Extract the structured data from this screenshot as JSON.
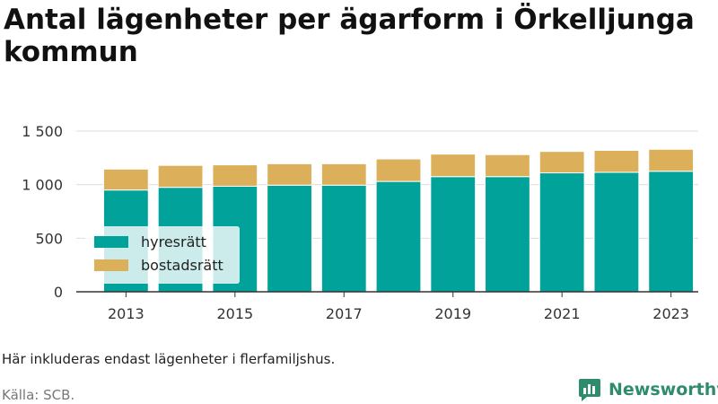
{
  "title": "Antal lägenheter per ägarform i Örkelljunga kommun",
  "note": "Här inkluderas endast lägenheter i flerfamiljshus.",
  "source": "Källa: SCB.",
  "brand": {
    "name": "Newsworthy",
    "icon": "newsworthy-logo-icon"
  },
  "colors": {
    "hyresratt": "#00a29a",
    "bostadsratt": "#dcb05a",
    "grid": "#dddddd",
    "axis": "#333333"
  },
  "chart_data": {
    "type": "bar",
    "stacked": true,
    "categories": [
      "2013",
      "2014",
      "2015",
      "2016",
      "2017",
      "2018",
      "2019",
      "2020",
      "2021",
      "2022",
      "2023"
    ],
    "x_tick_labels": [
      "2013",
      "2015",
      "2017",
      "2019",
      "2021",
      "2023"
    ],
    "series": [
      {
        "name": "hyresrätt",
        "values": [
          950,
          975,
          985,
          995,
          995,
          1030,
          1075,
          1075,
          1110,
          1115,
          1125
        ]
      },
      {
        "name": "bostadsrätt",
        "values": [
          195,
          205,
          200,
          200,
          200,
          210,
          210,
          205,
          200,
          205,
          205
        ]
      }
    ],
    "ylim": [
      0,
      1500
    ],
    "y_ticks": [
      0,
      500,
      1000,
      1500
    ],
    "y_tick_labels": [
      "0",
      "500",
      "1 000",
      "1 500"
    ],
    "grid": true,
    "legend_position": "bottom-left"
  }
}
